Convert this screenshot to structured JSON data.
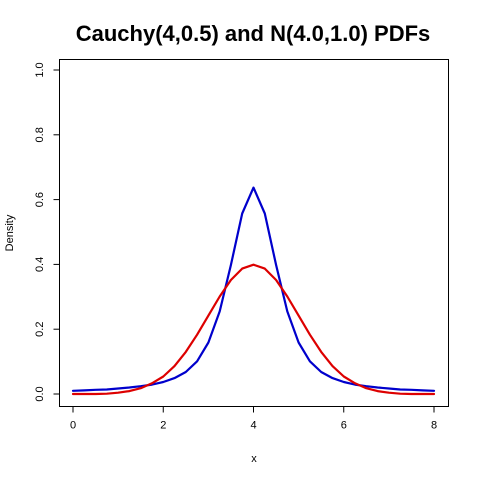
{
  "chart_data": {
    "type": "line",
    "title": "Cauchy(4,0.5) and N(4.0,1.0) PDFs",
    "xlabel": "x",
    "ylabel": "Density",
    "xlim": [
      0,
      8
    ],
    "ylim": [
      0,
      1
    ],
    "xticks": [
      0,
      2,
      4,
      6,
      8
    ],
    "yticks": [
      0.0,
      0.2,
      0.4,
      0.6,
      0.8,
      1.0
    ],
    "xtick_labels": [
      "0",
      "2",
      "4",
      "6",
      "8"
    ],
    "ytick_labels": [
      "0.0",
      "0.2",
      "0.4",
      "0.6",
      "0.8",
      "1.0"
    ],
    "grid": false,
    "legend": "none",
    "x": [
      0.0,
      0.25,
      0.5,
      0.75,
      1.0,
      1.25,
      1.5,
      1.75,
      2.0,
      2.25,
      2.5,
      2.75,
      3.0,
      3.25,
      3.5,
      3.75,
      4.0,
      4.25,
      4.5,
      4.75,
      5.0,
      5.25,
      5.5,
      5.75,
      6.0,
      6.25,
      6.5,
      6.75,
      7.0,
      7.25,
      7.5,
      7.75,
      8.0
    ],
    "series": [
      {
        "color": "#0000cc",
        "values": [
          0.01,
          0.011,
          0.013,
          0.014,
          0.017,
          0.02,
          0.024,
          0.029,
          0.037,
          0.049,
          0.068,
          0.101,
          0.159,
          0.255,
          0.398,
          0.557,
          0.637,
          0.557,
          0.398,
          0.255,
          0.159,
          0.101,
          0.068,
          0.049,
          0.037,
          0.029,
          0.024,
          0.02,
          0.017,
          0.014,
          0.013,
          0.011,
          0.01
        ]
      },
      {
        "color": "#dd0000",
        "values": [
          0.0,
          0.0,
          0.0,
          0.001,
          0.004,
          0.009,
          0.018,
          0.033,
          0.054,
          0.086,
          0.13,
          0.183,
          0.242,
          0.301,
          0.352,
          0.387,
          0.399,
          0.387,
          0.352,
          0.301,
          0.242,
          0.183,
          0.13,
          0.086,
          0.054,
          0.033,
          0.018,
          0.009,
          0.004,
          0.001,
          0.0,
          0.0,
          0.0
        ]
      }
    ]
  }
}
